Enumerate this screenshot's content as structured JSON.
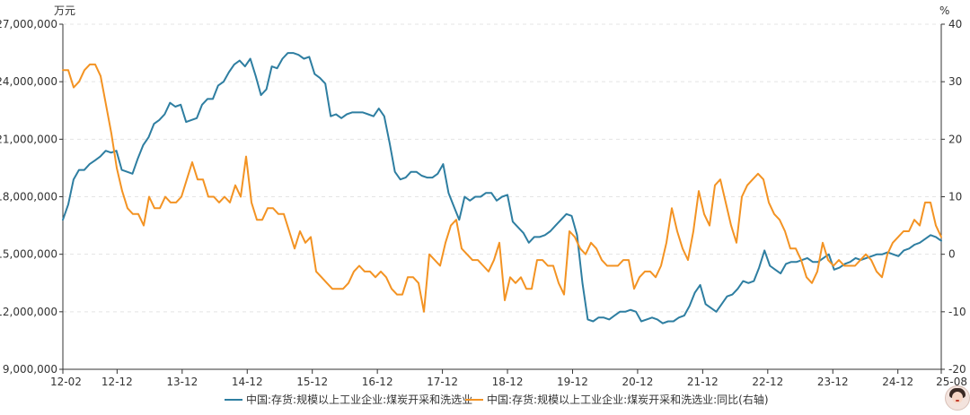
{
  "chart_data": {
    "type": "line",
    "left_axis_unit": "万元",
    "right_axis_unit": "%",
    "yleft": {
      "min": 9000000,
      "max": 27000000,
      "ticks": [
        "9,000,000",
        "12,000,000",
        "15,000,000",
        "18,000,000",
        "21,000,000",
        "24,000,000",
        "27,000,000"
      ]
    },
    "yright": {
      "min": -20,
      "max": 40,
      "ticks": [
        "-20",
        "-10",
        "0",
        "10",
        "20",
        "30",
        "40"
      ]
    },
    "x_ticks": [
      "12-02",
      "12-12",
      "13-12",
      "14-12",
      "15-12",
      "16-12",
      "17-12",
      "18-12",
      "19-12",
      "20-12",
      "21-12",
      "22-12",
      "23-12",
      "24-12",
      "25-08"
    ],
    "grid": true,
    "legend_position": "bottom-center",
    "series": [
      {
        "name": "中国:存货:规模以上工业企业:煤炭开采和洗选业",
        "axis": "left",
        "color": "#2e7ea1",
        "values": [
          16800000,
          17600000,
          18900000,
          19400000,
          19400000,
          19700000,
          19900000,
          20100000,
          20400000,
          20300000,
          20400000,
          19400000,
          19300000,
          19200000,
          20000000,
          20700000,
          21100000,
          21800000,
          22000000,
          22300000,
          22900000,
          22700000,
          22800000,
          21900000,
          22000000,
          22100000,
          22800000,
          23100000,
          23100000,
          23800000,
          24000000,
          24500000,
          24900000,
          25100000,
          24800000,
          25200000,
          24300000,
          23300000,
          23600000,
          24800000,
          24700000,
          25200000,
          25500000,
          25500000,
          25400000,
          25200000,
          25300000,
          24400000,
          24200000,
          23900000,
          22200000,
          22300000,
          22100000,
          22300000,
          22400000,
          22400000,
          22400000,
          22300000,
          22200000,
          22600000,
          22200000,
          20800000,
          19300000,
          18900000,
          19000000,
          19300000,
          19300000,
          19100000,
          19000000,
          19000000,
          19200000,
          19700000,
          18200000,
          17500000,
          16800000,
          18000000,
          17800000,
          18000000,
          18000000,
          18200000,
          18200000,
          17800000,
          18000000,
          18100000,
          16700000,
          16400000,
          16100000,
          15600000,
          15900000,
          15900000,
          16000000,
          16200000,
          16500000,
          16800000,
          17100000,
          17000000,
          16000000,
          13500000,
          11600000,
          11500000,
          11700000,
          11700000,
          11600000,
          11800000,
          12000000,
          12000000,
          12100000,
          12000000,
          11500000,
          11600000,
          11700000,
          11600000,
          11400000,
          11500000,
          11500000,
          11700000,
          11800000,
          12300000,
          13000000,
          13400000,
          12400000,
          12200000,
          12000000,
          12400000,
          12800000,
          12900000,
          13200000,
          13600000,
          13500000,
          13600000,
          14300000,
          15200000,
          14400000,
          14200000,
          14000000,
          14500000,
          14600000,
          14600000,
          14700000,
          14800000,
          14600000,
          14600000,
          14800000,
          15000000,
          14200000,
          14300000,
          14500000,
          14600000,
          14800000,
          14700000,
          14800000,
          14900000,
          15000000,
          15000000,
          15100000,
          15000000,
          14900000,
          15200000,
          15300000,
          15500000,
          15600000,
          15800000,
          16000000,
          15900000,
          15700000
        ]
      },
      {
        "name": "中国:存货:规模以上工业企业:煤炭开采和洗选业:同比(右轴)",
        "axis": "right",
        "color": "#f39323",
        "values": [
          32,
          32,
          29,
          30,
          32,
          33,
          33,
          31,
          26,
          21,
          15,
          11,
          8,
          7,
          7,
          5,
          10,
          8,
          8,
          10,
          9,
          9,
          10,
          13,
          16,
          13,
          13,
          10,
          10,
          9,
          10,
          9,
          12,
          10,
          17,
          9,
          6,
          6,
          8,
          8,
          7,
          7,
          4,
          1,
          4,
          2,
          3,
          -3,
          -4,
          -5,
          -6,
          -6,
          -6,
          -5,
          -3,
          -2,
          -3,
          -3,
          -4,
          -3,
          -4,
          -6,
          -7,
          -7,
          -4,
          -4,
          -5,
          -10,
          0,
          -1,
          -2,
          2,
          5,
          6,
          1,
          0,
          -1,
          -1,
          -2,
          -3,
          -1,
          2,
          -8,
          -4,
          -5,
          -4,
          -6,
          -6,
          -1,
          -1,
          -2,
          -2,
          -5,
          -7,
          4,
          3,
          1,
          0,
          2,
          1,
          -1,
          -2,
          -2,
          -2,
          -1,
          -1,
          -6,
          -4,
          -3,
          -3,
          -4,
          -2,
          2,
          8,
          4,
          1,
          -1,
          4,
          11,
          7,
          5,
          12,
          13,
          9,
          5,
          2,
          10,
          12,
          13,
          14,
          13,
          9,
          7,
          6,
          4,
          1,
          1,
          -1,
          -4,
          -5,
          -3,
          2,
          -1,
          -2,
          -1,
          -2,
          -2,
          -2,
          -1,
          0,
          -1,
          -3,
          -4,
          0,
          2,
          3,
          4,
          4,
          6,
          5,
          9,
          9,
          5,
          3
        ]
      }
    ]
  }
}
